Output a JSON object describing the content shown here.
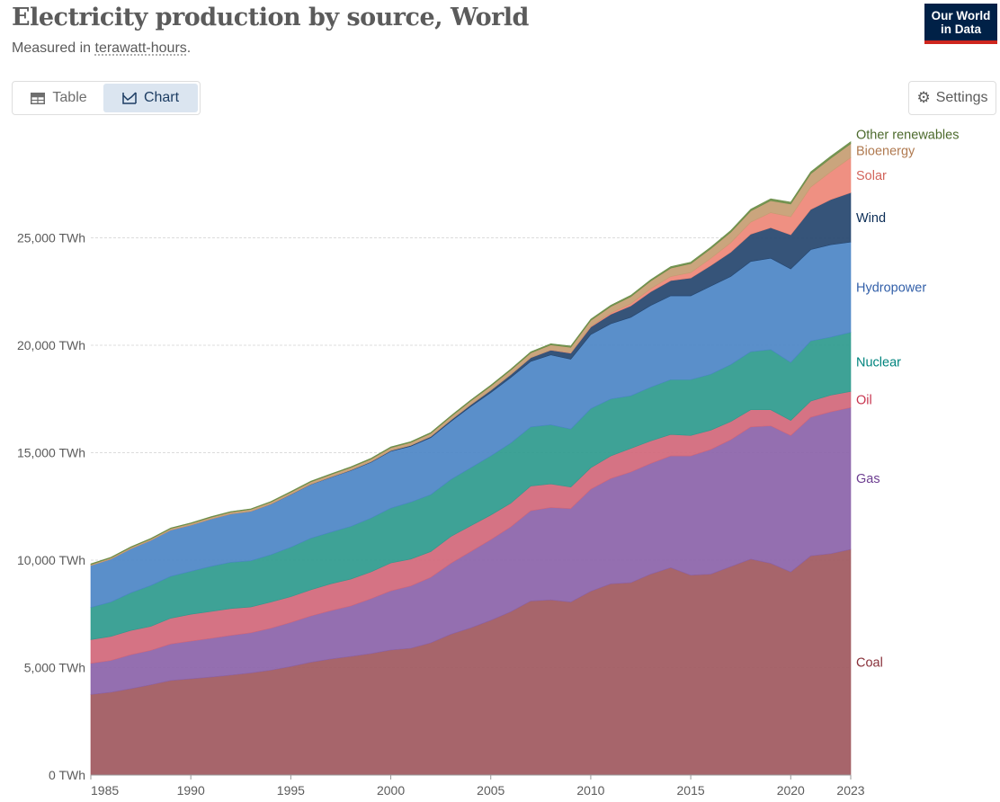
{
  "header": {
    "title": "Electricity production by source, World",
    "subtitle_prefix": "Measured in ",
    "subtitle_unit": "terawatt-hours",
    "subtitle_suffix": ".",
    "logo_line1": "Our World",
    "logo_line2": "in Data"
  },
  "toolbar": {
    "table_label": "Table",
    "chart_label": "Chart",
    "settings_label": "Settings",
    "active_tab": "Chart"
  },
  "chart_data": {
    "type": "area",
    "stacked": true,
    "x": [
      1985,
      1986,
      1987,
      1988,
      1989,
      1990,
      1991,
      1992,
      1993,
      1994,
      1995,
      1996,
      1997,
      1998,
      1999,
      2000,
      2001,
      2002,
      2003,
      2004,
      2005,
      2006,
      2007,
      2008,
      2009,
      2010,
      2011,
      2012,
      2013,
      2014,
      2015,
      2016,
      2017,
      2018,
      2019,
      2020,
      2021,
      2022,
      2023
    ],
    "ylim": [
      0,
      30000
    ],
    "yticks": [
      0,
      5000,
      10000,
      15000,
      20000,
      25000
    ],
    "ytick_labels": [
      "0 TWh",
      "5,000 TWh",
      "10,000 TWh",
      "15,000 TWh",
      "20,000 TWh",
      "25,000 TWh"
    ],
    "xticks": [
      1985,
      1990,
      1995,
      2000,
      2005,
      2010,
      2015,
      2020,
      2023
    ],
    "xtick_labels": [
      "1985",
      "1990",
      "1995",
      "2000",
      "2005",
      "2010",
      "2015",
      "2020",
      "2023"
    ],
    "grid": "horizontal",
    "legend": "right-inline",
    "series": [
      {
        "name": "Coal",
        "color": "#a0585e",
        "values": [
          3750,
          3850,
          4020,
          4200,
          4400,
          4480,
          4560,
          4650,
          4750,
          4880,
          5050,
          5250,
          5400,
          5520,
          5650,
          5820,
          5900,
          6150,
          6550,
          6850,
          7200,
          7600,
          8100,
          8150,
          8050,
          8550,
          8900,
          8950,
          9350,
          9650,
          9300,
          9350,
          9700,
          10050,
          9850,
          9450,
          10200,
          10300,
          10500
        ]
      },
      {
        "name": "Gas",
        "color": "#8b63a9",
        "values": [
          1450,
          1480,
          1580,
          1600,
          1700,
          1750,
          1800,
          1850,
          1870,
          1950,
          2050,
          2150,
          2250,
          2350,
          2550,
          2750,
          2900,
          3050,
          3300,
          3550,
          3750,
          3950,
          4200,
          4300,
          4350,
          4750,
          4900,
          5150,
          5150,
          5200,
          5550,
          5800,
          5900,
          6150,
          6400,
          6350,
          6450,
          6600,
          6600
        ]
      },
      {
        "name": "Oil",
        "color": "#d1677a",
        "values": [
          1100,
          1120,
          1130,
          1120,
          1200,
          1250,
          1250,
          1250,
          1200,
          1220,
          1200,
          1220,
          1250,
          1250,
          1250,
          1300,
          1250,
          1200,
          1250,
          1200,
          1150,
          1100,
          1150,
          1100,
          1000,
          1000,
          1050,
          1100,
          1050,
          1000,
          950,
          900,
          850,
          800,
          750,
          700,
          750,
          780,
          750
        ]
      },
      {
        "name": "Nuclear",
        "color": "#2e9a8d",
        "values": [
          1500,
          1600,
          1750,
          1900,
          1950,
          2000,
          2100,
          2150,
          2150,
          2200,
          2300,
          2400,
          2400,
          2450,
          2500,
          2550,
          2650,
          2650,
          2650,
          2700,
          2750,
          2800,
          2750,
          2750,
          2700,
          2750,
          2650,
          2450,
          2500,
          2550,
          2600,
          2600,
          2650,
          2700,
          2800,
          2700,
          2800,
          2700,
          2750
        ]
      },
      {
        "name": "Hydropower",
        "color": "#4c86c6",
        "values": [
          1950,
          2000,
          2050,
          2100,
          2150,
          2150,
          2200,
          2250,
          2300,
          2350,
          2450,
          2500,
          2550,
          2600,
          2600,
          2650,
          2600,
          2650,
          2700,
          2850,
          2950,
          3050,
          3050,
          3250,
          3250,
          3450,
          3500,
          3650,
          3800,
          3900,
          3900,
          4100,
          4100,
          4200,
          4250,
          4350,
          4250,
          4300,
          4200
        ]
      },
      {
        "name": "Wind",
        "color": "#25456e",
        "values": [
          0,
          0,
          0,
          0,
          0,
          0,
          0,
          0,
          0,
          5,
          10,
          10,
          15,
          20,
          25,
          30,
          40,
          55,
          65,
          85,
          105,
          135,
          170,
          220,
          280,
          345,
          440,
          530,
          640,
          710,
          830,
          960,
          1130,
          1270,
          1420,
          1590,
          1870,
          2100,
          2300
        ]
      },
      {
        "name": "Solar",
        "color": "#ee8777",
        "values": [
          0,
          0,
          0,
          0,
          0,
          0,
          0,
          0,
          0,
          0,
          0,
          0,
          0,
          0,
          0,
          0,
          1,
          2,
          3,
          4,
          5,
          6,
          8,
          12,
          20,
          30,
          60,
          100,
          140,
          190,
          250,
          330,
          440,
          560,
          700,
          840,
          1040,
          1290,
          1630
        ]
      },
      {
        "name": "Bioenergy",
        "color": "#c59d72",
        "values": [
          50,
          55,
          60,
          65,
          70,
          75,
          80,
          85,
          90,
          95,
          100,
          110,
          115,
          120,
          125,
          130,
          135,
          145,
          155,
          170,
          185,
          200,
          215,
          235,
          255,
          280,
          300,
          330,
          360,
          390,
          420,
          450,
          490,
          520,
          560,
          590,
          620,
          630,
          650
        ]
      },
      {
        "name": "Other renewables",
        "color": "#6a8d47",
        "values": [
          30,
          30,
          30,
          30,
          30,
          30,
          30,
          30,
          30,
          30,
          35,
          35,
          35,
          35,
          35,
          40,
          40,
          40,
          45,
          45,
          50,
          50,
          55,
          55,
          60,
          60,
          60,
          65,
          65,
          70,
          70,
          75,
          80,
          85,
          85,
          90,
          90,
          95,
          95
        ]
      }
    ]
  }
}
